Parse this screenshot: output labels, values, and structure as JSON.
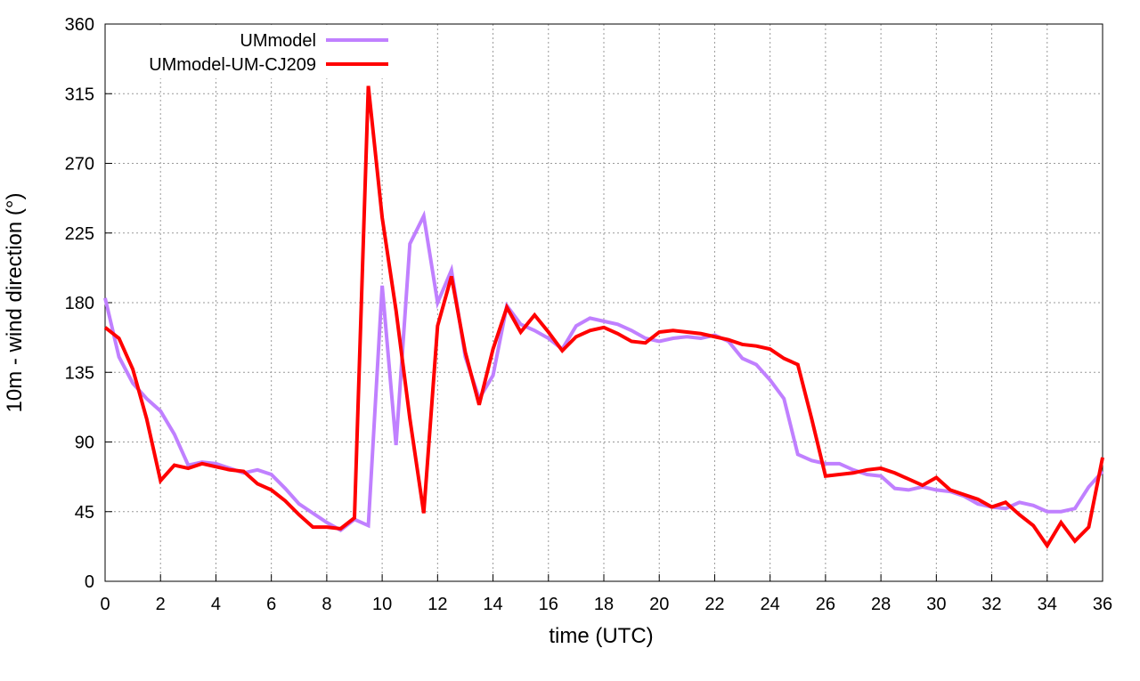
{
  "chart_data": {
    "type": "line",
    "xlabel": "time (UTC)",
    "ylabel": "10m - wind direction (°)",
    "x": [
      0,
      0.5,
      1,
      1.5,
      2,
      2.5,
      3,
      3.5,
      4,
      4.5,
      5,
      5.5,
      6,
      6.5,
      7,
      7.5,
      8,
      8.5,
      9,
      9.5,
      10,
      10.5,
      11,
      11.5,
      12,
      12.5,
      13,
      13.5,
      14,
      14.5,
      15,
      15.5,
      16,
      16.5,
      17,
      17.5,
      18,
      18.5,
      19,
      19.5,
      20,
      20.5,
      21,
      21.5,
      22,
      22.5,
      23,
      23.5,
      24,
      24.5,
      25,
      25.5,
      26,
      26.5,
      27,
      27.5,
      28,
      28.5,
      29,
      29.5,
      30,
      30.5,
      31,
      31.5,
      32,
      32.5,
      33,
      33.5,
      34,
      34.5,
      35,
      35.5,
      36
    ],
    "series": [
      {
        "name": "UMmodel",
        "color": "#c080ff",
        "values": [
          183,
          145,
          128,
          118,
          110,
          95,
          75,
          77,
          76,
          73,
          70,
          72,
          69,
          60,
          50,
          44,
          38,
          33,
          40,
          36,
          191,
          88,
          218,
          236,
          180,
          201,
          145,
          118,
          133,
          178,
          166,
          162,
          157,
          150,
          165,
          170,
          168,
          166,
          162,
          157,
          155,
          157,
          158,
          157,
          159,
          155,
          144,
          140,
          130,
          118,
          82,
          78,
          76,
          76,
          72,
          69,
          68,
          60,
          59,
          61,
          59,
          58,
          55,
          50,
          48,
          47,
          51,
          49,
          45,
          45,
          47,
          61,
          71
        ]
      },
      {
        "name": "UMmodel-UM-CJ209",
        "color": "#ff0000",
        "values": [
          164,
          157,
          137,
          105,
          65,
          75,
          73,
          76,
          74,
          72,
          71,
          63,
          59,
          52,
          43,
          35,
          35,
          34,
          41,
          320,
          235,
          175,
          105,
          44,
          165,
          197,
          148,
          114,
          150,
          177,
          161,
          172,
          161,
          149,
          158,
          162,
          164,
          160,
          155,
          154,
          161,
          162,
          161,
          160,
          158,
          156,
          153,
          152,
          150,
          144,
          140,
          105,
          68,
          69,
          70,
          72,
          73,
          70,
          66,
          62,
          67,
          59,
          56,
          53,
          48,
          51,
          43,
          36,
          23,
          38,
          26,
          35,
          80
        ]
      }
    ],
    "xlim": [
      0,
      36
    ],
    "xticks": [
      0,
      2,
      4,
      6,
      8,
      10,
      12,
      14,
      16,
      18,
      20,
      22,
      24,
      26,
      28,
      30,
      32,
      34,
      36
    ],
    "ylim": [
      0,
      360
    ],
    "yticks": [
      0,
      45,
      90,
      135,
      180,
      225,
      270,
      315,
      360
    ],
    "grid": true,
    "legend": "top-left"
  }
}
